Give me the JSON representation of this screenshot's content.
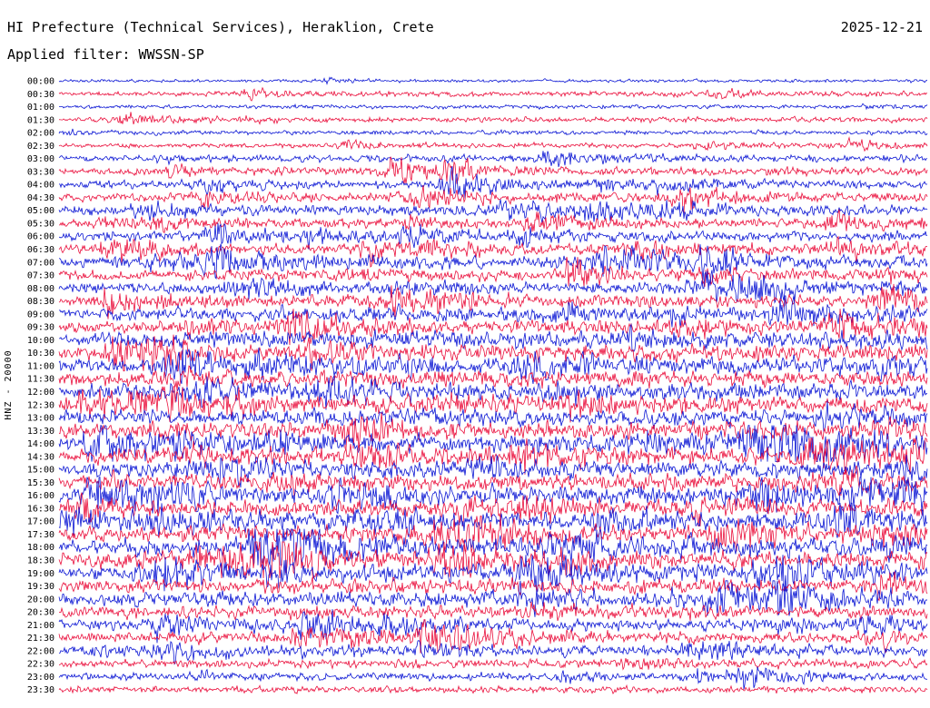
{
  "header": {
    "title": "HI Prefecture (Technical Services), Heraklion, Crete",
    "date": "2025-12-21",
    "filter_line": "Applied filter: WWSSN-SP"
  },
  "axis": {
    "station_label": "HNZ - 20000"
  },
  "colors": {
    "background": "#ffffff",
    "text": "#000000",
    "blue": "#0b16d4",
    "red": "#ea0f3c"
  },
  "chart_data": {
    "type": "line",
    "subtype": "helicorder-seismogram",
    "title": "HI Prefecture (Technical Services), Heraklion, Crete",
    "date": "2025-12-21",
    "applied_filter": "WWSSN-SP",
    "station_channel": "HNZ",
    "scale_label": "20000",
    "row_interval_minutes": 30,
    "rows_count": 48,
    "trace_color_cycle": [
      "blue",
      "red"
    ],
    "rows": [
      {
        "time": "00:00",
        "color": "blue",
        "amp": 1.0,
        "bursts": []
      },
      {
        "time": "00:30",
        "color": "red",
        "amp": 1.6,
        "bursts": [
          [
            0.76,
            1.5
          ]
        ]
      },
      {
        "time": "01:00",
        "color": "blue",
        "amp": 1.2,
        "bursts": []
      },
      {
        "time": "01:30",
        "color": "red",
        "amp": 1.5,
        "bursts": [
          [
            0.073,
            3.0
          ]
        ]
      },
      {
        "time": "02:00",
        "color": "blue",
        "amp": 1.3,
        "bursts": []
      },
      {
        "time": "02:30",
        "color": "red",
        "amp": 1.5,
        "bursts": [
          [
            0.33,
            1.5
          ],
          [
            0.91,
            2.2
          ]
        ]
      },
      {
        "time": "03:00",
        "color": "blue",
        "amp": 2.2,
        "bursts": [
          [
            0.56,
            2.5
          ]
        ]
      },
      {
        "time": "03:30",
        "color": "red",
        "amp": 2.4,
        "bursts": [
          [
            0.38,
            3.0
          ],
          [
            0.45,
            2.0
          ]
        ]
      },
      {
        "time": "04:00",
        "color": "blue",
        "amp": 2.6,
        "bursts": [
          [
            0.17,
            1.5
          ],
          [
            0.445,
            3.0
          ]
        ]
      },
      {
        "time": "04:30",
        "color": "red",
        "amp": 2.8,
        "bursts": [
          [
            0.167,
            2.0
          ],
          [
            0.408,
            2.5
          ],
          [
            0.712,
            2.5
          ]
        ]
      },
      {
        "time": "05:00",
        "color": "blue",
        "amp": 3.2,
        "bursts": [
          [
            0.513,
            2.2
          ],
          [
            0.61,
            2.2
          ],
          [
            0.7,
            2.0
          ]
        ]
      },
      {
        "time": "05:30",
        "color": "red",
        "amp": 3.0,
        "bursts": [
          [
            0.54,
            2.2
          ],
          [
            0.89,
            2.0
          ]
        ]
      },
      {
        "time": "06:00",
        "color": "blue",
        "amp": 3.2,
        "bursts": [
          [
            0.178,
            2.5
          ]
        ]
      },
      {
        "time": "06:30",
        "color": "red",
        "amp": 3.4,
        "bursts": [
          [
            0.057,
            2.0
          ],
          [
            0.356,
            2.2
          ],
          [
            0.665,
            2.0
          ],
          [
            0.895,
            1.8
          ]
        ]
      },
      {
        "time": "07:00",
        "color": "blue",
        "amp": 3.8,
        "bursts": [
          [
            0.173,
            2.8
          ],
          [
            0.743,
            2.2
          ]
        ]
      },
      {
        "time": "07:30",
        "color": "red",
        "amp": 3.4,
        "bursts": [
          [
            0.586,
            2.2
          ]
        ]
      },
      {
        "time": "08:00",
        "color": "blue",
        "amp": 3.8,
        "bursts": [
          [
            0.738,
            2.2
          ],
          [
            0.785,
            2.0
          ]
        ]
      },
      {
        "time": "08:30",
        "color": "red",
        "amp": 3.8,
        "bursts": [
          [
            0.052,
            2.0
          ],
          [
            0.382,
            2.0
          ],
          [
            0.953,
            2.2
          ]
        ]
      },
      {
        "time": "09:00",
        "color": "blue",
        "amp": 4.5,
        "bursts": []
      },
      {
        "time": "09:30",
        "color": "red",
        "amp": 4.5,
        "bursts": [
          [
            0.267,
            2.2
          ]
        ]
      },
      {
        "time": "10:00",
        "color": "blue",
        "amp": 5.0,
        "bursts": []
      },
      {
        "time": "10:30",
        "color": "red",
        "amp": 5.0,
        "bursts": [
          [
            0.068,
            2.0
          ],
          [
            0.099,
            1.8
          ]
        ]
      },
      {
        "time": "11:00",
        "color": "blue",
        "amp": 5.2,
        "bursts": [
          [
            0.131,
            2.8
          ]
        ]
      },
      {
        "time": "11:30",
        "color": "red",
        "amp": 5.0,
        "bursts": []
      },
      {
        "time": "12:00",
        "color": "blue",
        "amp": 5.2,
        "bursts": [
          [
            0.152,
            2.2
          ],
          [
            0.293,
            2.0
          ]
        ]
      },
      {
        "time": "12:30",
        "color": "red",
        "amp": 5.0,
        "bursts": [
          [
            0.026,
            1.8
          ],
          [
            0.089,
            1.8
          ],
          [
            0.126,
            1.8
          ]
        ]
      },
      {
        "time": "13:00",
        "color": "blue",
        "amp": 5.0,
        "bursts": []
      },
      {
        "time": "13:30",
        "color": "red",
        "amp": 5.2,
        "bursts": [
          [
            0.33,
            2.2
          ]
        ]
      },
      {
        "time": "14:00",
        "color": "blue",
        "amp": 5.6,
        "bursts": [
          [
            0.031,
            2.0
          ],
          [
            0.806,
            2.2
          ],
          [
            0.834,
            2.0
          ]
        ]
      },
      {
        "time": "14:30",
        "color": "red",
        "amp": 5.4,
        "bursts": [
          [
            0.864,
            3.2
          ]
        ]
      },
      {
        "time": "15:00",
        "color": "blue",
        "amp": 5.2,
        "bursts": []
      },
      {
        "time": "15:30",
        "color": "red",
        "amp": 5.0,
        "bursts": []
      },
      {
        "time": "16:00",
        "color": "blue",
        "amp": 5.4,
        "bursts": [
          [
            0.037,
            2.0
          ],
          [
            0.11,
            1.8
          ],
          [
            0.8,
            2.0
          ],
          [
            0.92,
            2.0
          ]
        ]
      },
      {
        "time": "16:30",
        "color": "red",
        "amp": 5.0,
        "bursts": []
      },
      {
        "time": "17:00",
        "color": "blue",
        "amp": 5.4,
        "bursts": [
          [
            0.01,
            1.8
          ],
          [
            0.115,
            1.8
          ],
          [
            0.895,
            2.0
          ]
        ]
      },
      {
        "time": "17:30",
        "color": "red",
        "amp": 5.4,
        "bursts": [
          [
            0.476,
            2.2
          ],
          [
            0.759,
            2.0
          ]
        ]
      },
      {
        "time": "18:00",
        "color": "blue",
        "amp": 5.6,
        "bursts": [
          [
            0.225,
            2.8
          ],
          [
            0.267,
            2.2
          ]
        ]
      },
      {
        "time": "18:30",
        "color": "red",
        "amp": 5.2,
        "bursts": [
          [
            0.246,
            2.2
          ],
          [
            0.445,
            2.0
          ]
        ]
      },
      {
        "time": "19:00",
        "color": "blue",
        "amp": 5.2,
        "bursts": [
          [
            0.115,
            2.2
          ],
          [
            0.539,
            2.0
          ],
          [
            0.834,
            2.2
          ]
        ]
      },
      {
        "time": "19:30",
        "color": "red",
        "amp": 4.5,
        "bursts": []
      },
      {
        "time": "20:00",
        "color": "blue",
        "amp": 4.8,
        "bursts": [
          [
            0.759,
            2.2
          ],
          [
            0.822,
            2.2
          ]
        ]
      },
      {
        "time": "20:30",
        "color": "red",
        "amp": 3.8,
        "bursts": []
      },
      {
        "time": "21:00",
        "color": "blue",
        "amp": 3.6,
        "bursts": [
          [
            0.115,
            2.2
          ],
          [
            0.28,
            2.0
          ]
        ]
      },
      {
        "time": "21:30",
        "color": "red",
        "amp": 3.4,
        "bursts": [
          [
            0.277,
            2.2
          ],
          [
            0.416,
            3.5
          ]
        ]
      },
      {
        "time": "22:00",
        "color": "blue",
        "amp": 3.2,
        "bursts": [
          [
            0.126,
            2.2
          ],
          [
            0.728,
            2.0
          ]
        ]
      },
      {
        "time": "22:30",
        "color": "red",
        "amp": 2.6,
        "bursts": []
      },
      {
        "time": "23:00",
        "color": "blue",
        "amp": 2.4,
        "bursts": [
          [
            0.785,
            2.2
          ]
        ]
      },
      {
        "time": "23:30",
        "color": "red",
        "amp": 2.0,
        "bursts": []
      }
    ]
  }
}
